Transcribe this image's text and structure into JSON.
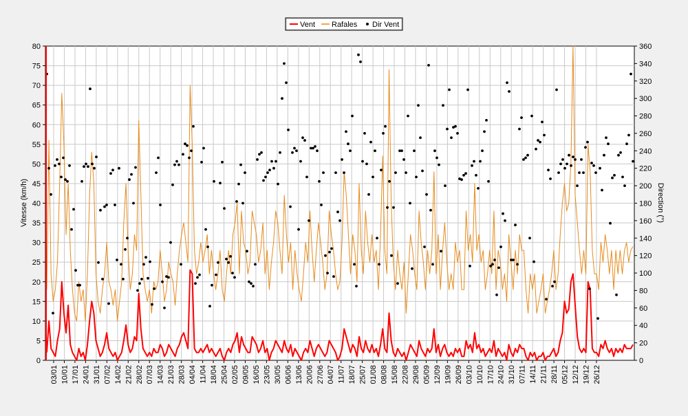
{
  "chart_data": {
    "type": "line",
    "title": "",
    "ylabel_left": "Vitesse (km/h)",
    "ylabel_right": "Direction (°)",
    "y_left_range": [
      0,
      80
    ],
    "y_left_ticks": [
      "0",
      "5",
      "10",
      "15",
      "20",
      "25",
      "30",
      "35",
      "40",
      "45",
      "50",
      "55",
      "60",
      "65",
      "70",
      "75",
      "80"
    ],
    "y_right_range": [
      0,
      360
    ],
    "y_right_ticks": [
      "0",
      "20",
      "40",
      "60",
      "80",
      "100",
      "120",
      "140",
      "160",
      "180",
      "200",
      "220",
      "240",
      "260",
      "280",
      "300",
      "320",
      "340",
      "360"
    ],
    "grid": true,
    "legend_position": "top-center",
    "x_tick_labels": [
      "03/01",
      "10/01",
      "17/01",
      "24/01",
      "31/01",
      "07/02",
      "14/02",
      "21/02",
      "28/02",
      "07/03",
      "14/03",
      "21/03",
      "28/03",
      "04/04",
      "11/04",
      "18/04",
      "25/04",
      "02/05",
      "09/05",
      "16/05",
      "23/05",
      "30/05",
      "06/06",
      "13/06",
      "20/06",
      "27/06",
      "04/07",
      "11/07",
      "18/07",
      "25/07",
      "01/08",
      "08/08",
      "15/08",
      "22/08",
      "29/08",
      "05/09",
      "12/09",
      "19/09",
      "26/09",
      "03/10",
      "10/10",
      "17/10",
      "24/10",
      "31/10",
      "07/11",
      "14/11",
      "21/11",
      "28/11",
      "05/12",
      "12/12",
      "19/12",
      "26/12"
    ],
    "series": [
      {
        "name": "Vent",
        "color": "#ff0000",
        "axis": "left",
        "values": [
          2,
          10,
          3,
          2,
          1,
          5,
          8,
          20,
          12,
          7,
          14,
          4,
          2,
          1,
          0,
          3,
          1,
          2,
          0,
          4,
          10,
          15,
          12,
          5,
          3,
          1,
          2,
          4,
          7,
          3,
          2,
          1,
          2,
          0,
          1,
          2,
          5,
          9,
          4,
          2,
          3,
          6,
          5,
          17,
          8,
          3,
          2,
          1,
          2,
          1,
          3,
          2,
          2,
          4,
          3,
          1,
          2,
          4,
          3,
          2,
          1,
          3,
          4,
          6,
          7,
          5,
          3,
          23,
          22,
          3,
          2,
          2,
          3,
          2,
          3,
          4,
          2,
          3,
          2,
          1,
          2,
          3,
          1,
          0,
          2,
          3,
          2,
          4,
          5,
          7,
          2,
          6,
          4,
          3,
          2,
          2,
          6,
          5,
          4,
          2,
          3,
          5,
          2,
          3,
          0,
          2,
          3,
          5,
          4,
          3,
          2,
          5,
          3,
          2,
          4,
          1,
          3,
          2,
          1,
          0,
          2,
          3,
          2,
          5,
          3,
          1,
          3,
          4,
          3,
          2,
          1,
          2,
          5,
          4,
          3,
          2,
          0,
          1,
          3,
          8,
          6,
          4,
          2,
          4,
          3,
          1,
          6,
          3,
          2,
          5,
          3,
          2,
          4,
          2,
          3,
          1,
          4,
          8,
          3,
          2,
          12,
          5,
          2,
          1,
          3,
          2,
          1,
          2,
          0,
          2,
          4,
          3,
          2,
          1,
          5,
          3,
          2,
          1,
          3,
          2,
          3,
          8,
          2,
          4,
          1,
          3,
          4,
          2,
          1,
          2,
          1,
          3,
          2,
          3,
          1,
          1,
          5,
          3,
          4,
          2,
          7,
          3,
          4,
          2,
          3,
          1,
          2,
          3,
          2,
          5,
          1,
          3,
          2,
          1,
          2,
          0,
          4,
          2,
          1,
          3,
          2,
          4,
          3,
          3,
          1,
          0,
          2,
          1,
          2,
          0,
          1,
          1,
          2,
          0,
          1,
          1,
          2,
          3,
          1,
          2,
          5,
          7,
          15,
          12,
          13,
          20,
          22,
          14,
          6,
          3,
          2,
          3,
          2,
          20,
          18,
          3,
          2,
          2,
          1,
          4,
          3,
          5,
          3,
          2,
          3,
          1,
          3,
          2,
          3,
          2,
          4,
          3,
          3,
          3,
          4
        ]
      },
      {
        "name": "Rafales",
        "color": "#e88a1a",
        "axis": "left",
        "values": [
          18,
          56,
          22,
          15,
          18,
          25,
          45,
          68,
          55,
          32,
          45,
          28,
          18,
          12,
          10,
          20,
          15,
          18,
          10,
          22,
          42,
          53,
          45,
          22,
          15,
          12,
          18,
          22,
          30,
          20,
          18,
          14,
          18,
          10,
          15,
          20,
          35,
          45,
          28,
          18,
          22,
          32,
          28,
          61,
          42,
          22,
          18,
          15,
          18,
          12,
          20,
          18,
          20,
          28,
          22,
          15,
          18,
          25,
          22,
          20,
          14,
          22,
          28,
          32,
          35,
          30,
          25,
          70,
          55,
          28,
          22,
          25,
          30,
          25,
          28,
          32,
          22,
          28,
          22,
          18,
          22,
          28,
          18,
          15,
          22,
          28,
          22,
          32,
          35,
          40,
          22,
          38,
          30,
          28,
          22,
          25,
          38,
          35,
          32,
          25,
          28,
          35,
          22,
          28,
          18,
          25,
          30,
          38,
          35,
          28,
          22,
          42,
          32,
          25,
          30,
          18,
          28,
          22,
          18,
          15,
          22,
          30,
          25,
          38,
          28,
          20,
          28,
          35,
          30,
          25,
          18,
          22,
          38,
          32,
          28,
          22,
          18,
          20,
          30,
          48,
          42,
          32,
          22,
          32,
          28,
          20,
          45,
          28,
          22,
          38,
          30,
          25,
          32,
          25,
          28,
          18,
          32,
          52,
          28,
          22,
          74,
          40,
          25,
          18,
          28,
          22,
          18,
          25,
          12,
          22,
          32,
          28,
          22,
          18,
          38,
          30,
          25,
          18,
          28,
          22,
          28,
          48,
          22,
          32,
          18,
          28,
          35,
          25,
          18,
          22,
          18,
          30,
          25,
          28,
          18,
          18,
          38,
          28,
          32,
          25,
          45,
          28,
          32,
          25,
          28,
          18,
          22,
          28,
          22,
          38,
          18,
          28,
          25,
          18,
          22,
          15,
          32,
          25,
          18,
          28,
          22,
          32,
          28,
          28,
          18,
          12,
          22,
          18,
          22,
          12,
          15,
          18,
          22,
          12,
          15,
          18,
          22,
          28,
          18,
          22,
          32,
          40,
          45,
          38,
          40,
          50,
          80,
          42,
          35,
          28,
          22,
          28,
          22,
          55,
          48,
          28,
          22,
          22,
          18,
          30,
          25,
          32,
          28,
          22,
          28,
          18,
          28,
          22,
          28,
          22,
          28,
          30,
          25,
          28,
          29
        ]
      },
      {
        "name": "Dir Vent",
        "color": "#000000",
        "axis": "right",
        "style": "points",
        "values": [
          328,
          220,
          190,
          54,
          223,
          230,
          225,
          210,
          232,
          207,
          205,
          223,
          150,
          173,
          103,
          86,
          86,
          205,
          222,
          225,
          222,
          311,
          225,
          220,
          233,
          112,
          172,
          93,
          176,
          178,
          65,
          214,
          218,
          178,
          115,
          220,
          110,
          93,
          127,
          140,
          207,
          213,
          180,
          221,
          80,
          88,
          93,
          110,
          118,
          94,
          113,
          64,
          82,
          215,
          232,
          178,
          90,
          60,
          96,
          95,
          135,
          201,
          224,
          228,
          224,
          110,
          236,
          248,
          246,
          232,
          240,
          268,
          88,
          95,
          98,
          227,
          243,
          150,
          130,
          62,
          86,
          205,
          98,
          112,
          203,
          227,
          174,
          116,
          112,
          119,
          100,
          95,
          182,
          202,
          224,
          180,
          215,
          125,
          90,
          88,
          85,
          110,
          230,
          236,
          238,
          206,
          210,
          215,
          218,
          228,
          220,
          228,
          202,
          238,
          300,
          340,
          318,
          264,
          176,
          238,
          243,
          240,
          150,
          228,
          255,
          252,
          210,
          160,
          243,
          243,
          245,
          240,
          205,
          178,
          215,
          120,
          100,
          124,
          128,
          96,
          215,
          170,
          160,
          230,
          215,
          262,
          248,
          240,
          280,
          110,
          85,
          350,
          342,
          228,
          260,
          225,
          190,
          250,
          210,
          240,
          140,
          110,
          218,
          260,
          268,
          175,
          205,
          120,
          175,
          215,
          88,
          240,
          240,
          230,
          215,
          280,
          180,
          105,
          240,
          210,
          292,
          255,
          217,
          130,
          190,
          338,
          172,
          110,
          240,
          232,
          224,
          125,
          292,
          200,
          265,
          310,
          255,
          267,
          268,
          260,
          208,
          207,
          212,
          214,
          310,
          108,
          223,
          228,
          212,
          197,
          228,
          240,
          262,
          275,
          205,
          108,
          110,
          115,
          75,
          106,
          130,
          168,
          160,
          318,
          308,
          115,
          115,
          155,
          110,
          265,
          278,
          230,
          232,
          235,
          140,
          280,
          113,
          242,
          252,
          250,
          273,
          258,
          70,
          218,
          208,
          85,
          90,
          310,
          215,
          225,
          230,
          220,
          225,
          235,
          223,
          233,
          230,
          200,
          215,
          230,
          215,
          244,
          250,
          82,
          226,
          223,
          215,
          48,
          220,
          195,
          235,
          255,
          248,
          157,
          209,
          212,
          75,
          235,
          238,
          210,
          200,
          248,
          258,
          328,
          228
        ]
      }
    ]
  }
}
